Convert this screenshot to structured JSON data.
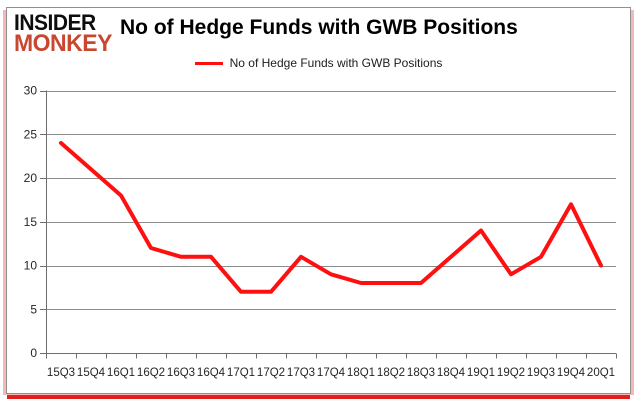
{
  "header": {
    "logo_line1": "INSIDER",
    "logo_line2": "MONKEY",
    "title": "No of Hedge Funds with GWB Positions"
  },
  "legend": {
    "label": "No of Hedge Funds with GWB Positions"
  },
  "colors": {
    "line": "#fe1010",
    "logo_monkey_red": "#c9472e",
    "gridline": "#8c8c8c",
    "axis": "#6e6e6e",
    "tick_label": "#262626",
    "frame_border": "#909090",
    "shadow_red": "#e41d1d",
    "shadow_pink": "#f3b9b9"
  },
  "chart_data": {
    "type": "line",
    "title": "No of Hedge Funds with GWB Positions",
    "categories": [
      "15Q3",
      "15Q4",
      "16Q1",
      "16Q2",
      "16Q3",
      "16Q4",
      "17Q1",
      "17Q2",
      "17Q3",
      "17Q4",
      "18Q1",
      "18Q2",
      "18Q3",
      "18Q4",
      "19Q1",
      "19Q2",
      "19Q3",
      "19Q4",
      "20Q1"
    ],
    "series": [
      {
        "name": "No of Hedge Funds with GWB Positions",
        "values": [
          24,
          21,
          18,
          12,
          11,
          11,
          7,
          7,
          11,
          9,
          8,
          8,
          8,
          11,
          14,
          9,
          11,
          17,
          10
        ]
      }
    ],
    "ylim": [
      0,
      30
    ],
    "yticks": [
      0,
      5,
      10,
      15,
      20,
      25,
      30
    ],
    "grid": true,
    "legend_position": "top-center"
  }
}
